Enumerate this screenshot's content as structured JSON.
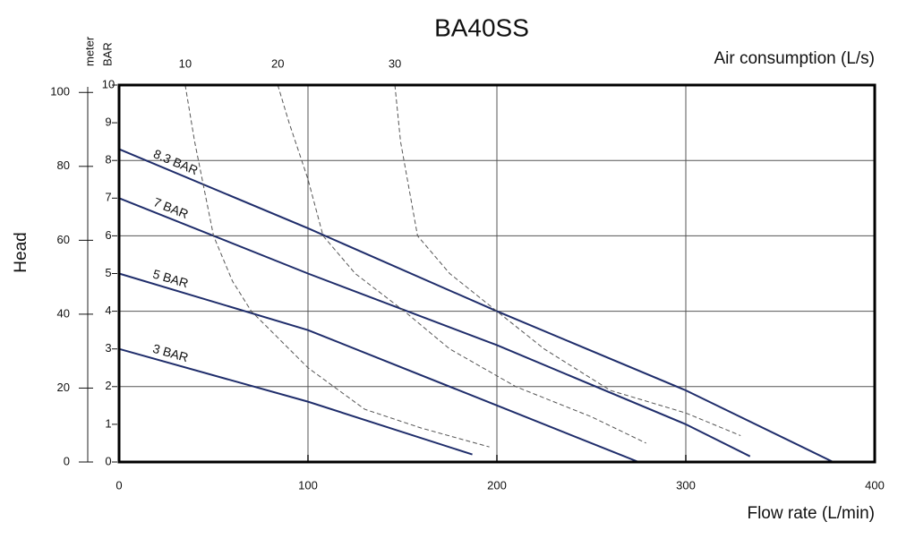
{
  "chart_data": {
    "type": "line",
    "title": "BA40SS",
    "x_label": "Flow rate (L/min)",
    "top_label": "Air consumption (L/s)",
    "y_label": "Head",
    "y_unit_label": "BAR",
    "y2_unit_label": "meter",
    "xlim": [
      0,
      400
    ],
    "xticks": [
      0,
      100,
      200,
      300,
      400
    ],
    "ylim": [
      0,
      10
    ],
    "yticks": [
      0,
      1,
      2,
      3,
      4,
      5,
      6,
      7,
      8,
      9,
      10
    ],
    "y2lim": [
      0,
      102
    ],
    "y2ticks": [
      0,
      20,
      40,
      60,
      80,
      100
    ],
    "grid_x": [
      100,
      200,
      300
    ],
    "grid_y": [
      2,
      4,
      6,
      8
    ],
    "series": [
      {
        "name": "8.3 BAR",
        "color": "#1f2d6b",
        "dashed": false,
        "x": [
          0,
          100,
          200,
          300,
          378
        ],
        "values": [
          8.3,
          6.2,
          4.0,
          1.9,
          0
        ]
      },
      {
        "name": "7 BAR",
        "color": "#1f2d6b",
        "dashed": false,
        "x": [
          0,
          100,
          200,
          300,
          334
        ],
        "values": [
          7.0,
          5.0,
          3.1,
          1.0,
          0.15
        ]
      },
      {
        "name": "5 BAR",
        "color": "#1f2d6b",
        "dashed": false,
        "x": [
          0,
          100,
          200,
          275
        ],
        "values": [
          5.0,
          3.5,
          1.5,
          0
        ]
      },
      {
        "name": "3 BAR",
        "color": "#1f2d6b",
        "dashed": false,
        "x": [
          0,
          100,
          187
        ],
        "values": [
          3.0,
          1.6,
          0.2
        ]
      },
      {
        "name": "10",
        "color": "#555555",
        "dashed": true,
        "x": [
          35,
          40,
          50,
          60,
          70,
          100,
          130,
          160,
          196
        ],
        "values": [
          10,
          8.5,
          6,
          4.8,
          4,
          2.5,
          1.4,
          0.9,
          0.4
        ]
      },
      {
        "name": "20",
        "color": "#555555",
        "dashed": true,
        "x": [
          84,
          90,
          100,
          108,
          125,
          151,
          175,
          210,
          250,
          279
        ],
        "values": [
          10,
          9,
          7.5,
          6,
          5,
          4,
          3,
          2,
          1.2,
          0.5
        ]
      },
      {
        "name": "30",
        "color": "#555555",
        "dashed": true,
        "x": [
          146,
          149,
          158,
          175,
          200,
          225,
          260,
          300,
          329
        ],
        "values": [
          10,
          8.5,
          6,
          5,
          4,
          3,
          1.9,
          1.3,
          0.7
        ]
      }
    ]
  }
}
